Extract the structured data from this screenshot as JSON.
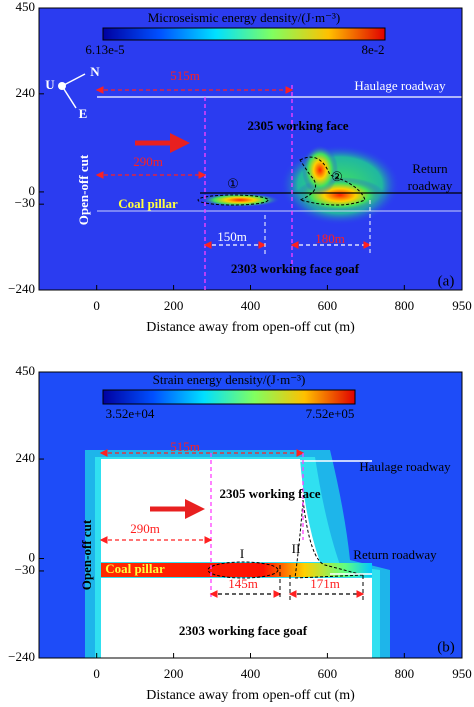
{
  "chart_data": [
    {
      "type": "contour",
      "colorbar_title": "Microseismic energy density/(J·m⁻³)",
      "colorbar_min": "6.13e-5",
      "colorbar_max": "8e-2",
      "xlabel": "Distance away from open-off cut (m)",
      "xlim": [
        -150,
        950
      ],
      "xticks": [
        0,
        200,
        400,
        600,
        800,
        950
      ],
      "ylim": [
        -240,
        450
      ],
      "yticks": [
        450,
        240,
        0,
        {
          "value": -30,
          "label": "−30"
        },
        {
          "value": -240,
          "label": "−240"
        }
      ],
      "annotations": [
        "515m",
        "290m",
        "150m",
        "180m",
        "2305 working face",
        "2303 working face goaf",
        "Haulage roadway",
        "Return",
        "roadway",
        "Coal pillar",
        "Open-off cut",
        "①",
        "②",
        "(a)",
        "U",
        "N",
        "E"
      ]
    },
    {
      "type": "contour",
      "colorbar_title": "Strain energy density/(J·m⁻³)",
      "colorbar_min": "3.52e+04",
      "colorbar_max": "7.52e+05",
      "xlabel": "Distance away from open-off cut (m)",
      "xlim": [
        -150,
        950
      ],
      "xticks": [
        0,
        200,
        400,
        600,
        800,
        950
      ],
      "ylim": [
        -240,
        450
      ],
      "yticks": [
        450,
        240,
        0,
        {
          "value": -30,
          "label": "−30"
        },
        {
          "value": -240,
          "label": "−240"
        }
      ],
      "annotations": [
        "515m",
        "290m",
        "145m",
        "171m",
        "2305 working face",
        "2303 working face goaf",
        "Haulage roadway",
        "Return roadway",
        "Coal pillar",
        "Open-off cut",
        "I",
        "II",
        "(b)"
      ]
    }
  ]
}
